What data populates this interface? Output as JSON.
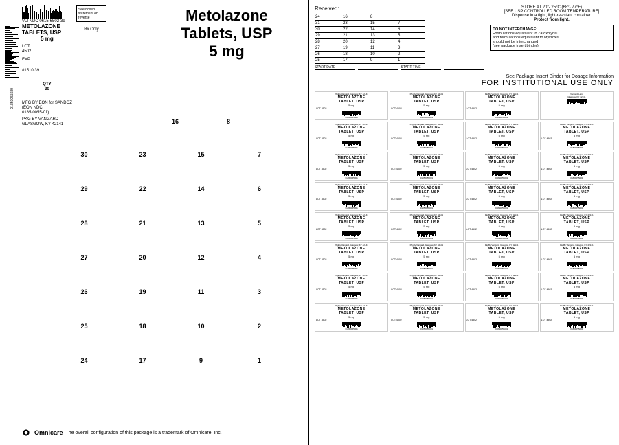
{
  "ndc_line": "VLI NDC 0615-6502-39",
  "drug_name": "METOLAZONE",
  "form": "TABLETS, USP",
  "strength": "5 mg",
  "boxed_statement": "See boxed statement on reverse",
  "rx_only": "Rx Only",
  "lot_label": "LOT",
  "lot_value": "4502",
  "exp_label": "EXP",
  "exp_value": "#1510 39",
  "qty_label": "QTY",
  "qty_value": "30",
  "mfg_line1": "MFG BY EON for SANDOZ",
  "mfg_line2": "(EON NDC",
  "mfg_line3": "0185-0055-01)",
  "pkg_line1": "PKG BY VANGARD",
  "pkg_line2": "GLASGOW, KY 42141",
  "title_line1": "Metolazone",
  "title_line2": "Tablets, USP",
  "title_line3": "5 mg",
  "omnicare": "Omnicare",
  "omnicare_tag": "The overall configuration of this package is a trademark of Omnicare, Inc.",
  "side_barcode_num": "01850055039",
  "number_grid": [
    [
      "30",
      "23",
      "15",
      "7"
    ],
    [
      "29",
      "22",
      "14",
      "6"
    ],
    [
      "28",
      "21",
      "13",
      "5"
    ],
    [
      "27",
      "20",
      "12",
      "4"
    ],
    [
      "26",
      "19",
      "11",
      "3"
    ],
    [
      "25",
      "18",
      "10",
      "2"
    ],
    [
      "24",
      "17",
      "9",
      "1"
    ]
  ],
  "row8": [
    "16",
    "8"
  ],
  "received_label": "Received:",
  "received_grid": [
    [
      "24",
      "16",
      "8",
      ""
    ],
    [
      "31",
      "23",
      "15",
      "7"
    ],
    [
      "30",
      "22",
      "14",
      "6"
    ],
    [
      "29",
      "21",
      "13",
      "5"
    ],
    [
      "28",
      "20",
      "12",
      "4"
    ],
    [
      "27",
      "19",
      "11",
      "3"
    ],
    [
      "26",
      "18",
      "10",
      "2"
    ],
    [
      "25",
      "17",
      "9",
      "1"
    ]
  ],
  "start_date": "START DATE",
  "start_time": "START TIME",
  "storage_line1": "STORE AT 20°- 25°C (68°- 77°F)",
  "storage_line2": "[SEE USP CONTROLLED ROOM TEMPERATURE]",
  "storage_line3": "Dispense in a tight, light-resistant container.",
  "storage_line4": "Protect from light.",
  "interchange_title": "DO NOT INTERCHANGE:",
  "interchange_body1": "Formulations equivalent to Zaroxolyn®",
  "interchange_body2": "and formulations equivalent to Mykrox®",
  "interchange_body3": "should not be interchanged",
  "interchange_body4": "(see package insert binder).",
  "pkg_insert_line": "See Package Insert Binder for Dosage Information",
  "inst_only": "FOR INSTITUTIONAL USE ONLY",
  "unit_label": {
    "mfr": "PkgBy Vangard, Glasgow, KY 42141",
    "name1": "METOLAZONE",
    "name2": "TABLET, USP",
    "strength": "5 mg",
    "lot": "LOT 4502",
    "barcode_num": "01850055001"
  },
  "blank_label": {
    "mfr": "Vangard Labs",
    "loc": "Glasgow, KY 42141"
  }
}
